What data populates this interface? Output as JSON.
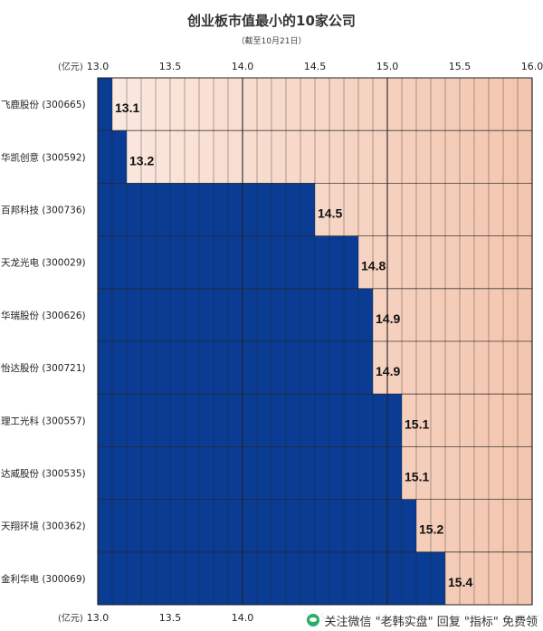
{
  "header": {
    "title": "创业板市值最小的10家公司",
    "subtitle": "（截至10月21日）"
  },
  "watermark": {
    "text": "关注微信 \"老韩实盘\" 回复 \"指标\" 免费领"
  },
  "colors": {
    "bar": "#0a3c94",
    "bg_low": "#fbe9e0",
    "bg_high": "#f3c5ae",
    "grid": "#222222"
  },
  "chart_data": {
    "type": "bar",
    "orientation": "horizontal",
    "title": "创业板市值最小的10家公司",
    "subtitle": "（截至10月21日）",
    "unit_label": "(亿元)",
    "categories": [
      "飞鹿股份 (300665)",
      "华凯创意 (300592)",
      "百邦科技 (300736)",
      "天龙光电 (300029)",
      "华瑞股份 (300626)",
      "怡达股份 (300721)",
      "理工光科 (300557)",
      "达威股份 (300535)",
      "天翔环境 (300362)",
      "金利华电 (300069)"
    ],
    "values": [
      13.1,
      13.2,
      14.5,
      14.8,
      14.9,
      14.9,
      15.1,
      15.1,
      15.2,
      15.4
    ],
    "value_labels": [
      "13.1",
      "13.2",
      "14.5",
      "14.8",
      "14.9",
      "14.9",
      "15.1",
      "15.1",
      "15.2",
      "15.4"
    ],
    "xlim": [
      13.0,
      16.0
    ],
    "xticks": [
      "13.0",
      "13.5",
      "14.0",
      "14.5",
      "15.0",
      "15.5",
      "16.0"
    ],
    "grid": true
  }
}
